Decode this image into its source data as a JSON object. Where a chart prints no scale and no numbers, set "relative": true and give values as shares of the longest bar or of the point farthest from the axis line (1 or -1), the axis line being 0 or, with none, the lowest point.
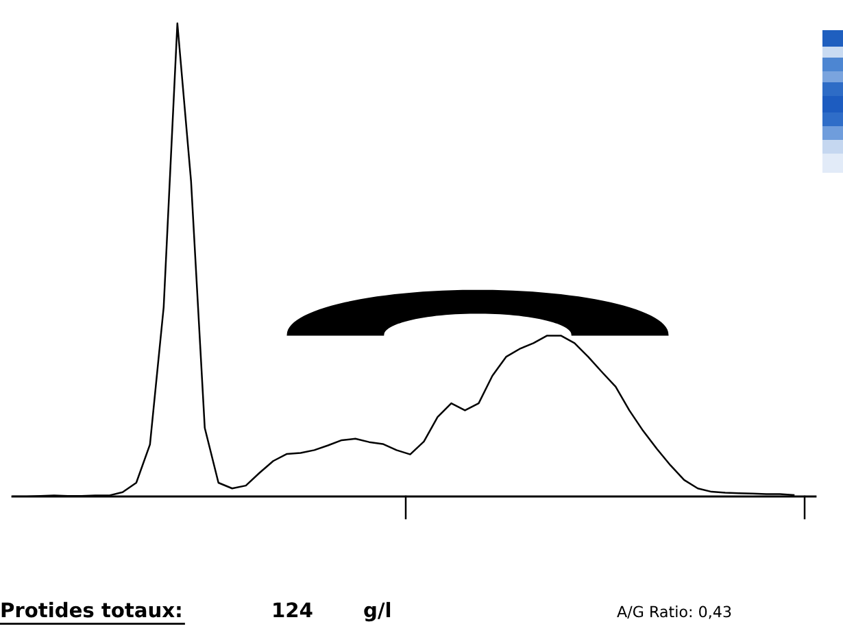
{
  "chart_data": {
    "type": "line",
    "relative": true,
    "categories": [
      null,
      null,
      null,
      null,
      null,
      null,
      null,
      null,
      null,
      null,
      null,
      null,
      null,
      null,
      null,
      null,
      null,
      null,
      null,
      null,
      null,
      null,
      null,
      null,
      null,
      null,
      null,
      null,
      null,
      null,
      null,
      null,
      null,
      null,
      null,
      null,
      null,
      null,
      null,
      null,
      null,
      null,
      null,
      null,
      null,
      null,
      null,
      null,
      null,
      null,
      null,
      null,
      null,
      null,
      null,
      null,
      null,
      null
    ],
    "series": [
      {
        "color": "#000000",
        "values": [
          0,
          0,
          0.001,
          0.002,
          0.001,
          0.001,
          0.002,
          0.002,
          0.009,
          0.029,
          0.11,
          0.4,
          1,
          0.666,
          0.145,
          0.029,
          0.017,
          0.023,
          0.05,
          0.075,
          0.09,
          0.092,
          0.098,
          0.108,
          0.119,
          0.122,
          0.115,
          0.111,
          0.098,
          0.089,
          0.116,
          0.168,
          0.197,
          0.182,
          0.197,
          0.255,
          0.295,
          0.312,
          0.324,
          0.34,
          0.34,
          0.324,
          0.295,
          0.263,
          0.232,
          0.182,
          0.139,
          0.101,
          0.066,
          0.035,
          0.017,
          0.01,
          0.008,
          0.007,
          0.006,
          0.005,
          0.005,
          0.003
        ]
      }
    ],
    "annotations": [
      "Protides totaux:",
      "124",
      "g/l",
      "A/G Ratio: 0,43"
    ],
    "grid": false,
    "marker": "none",
    "line_style": "solid"
  }
}
